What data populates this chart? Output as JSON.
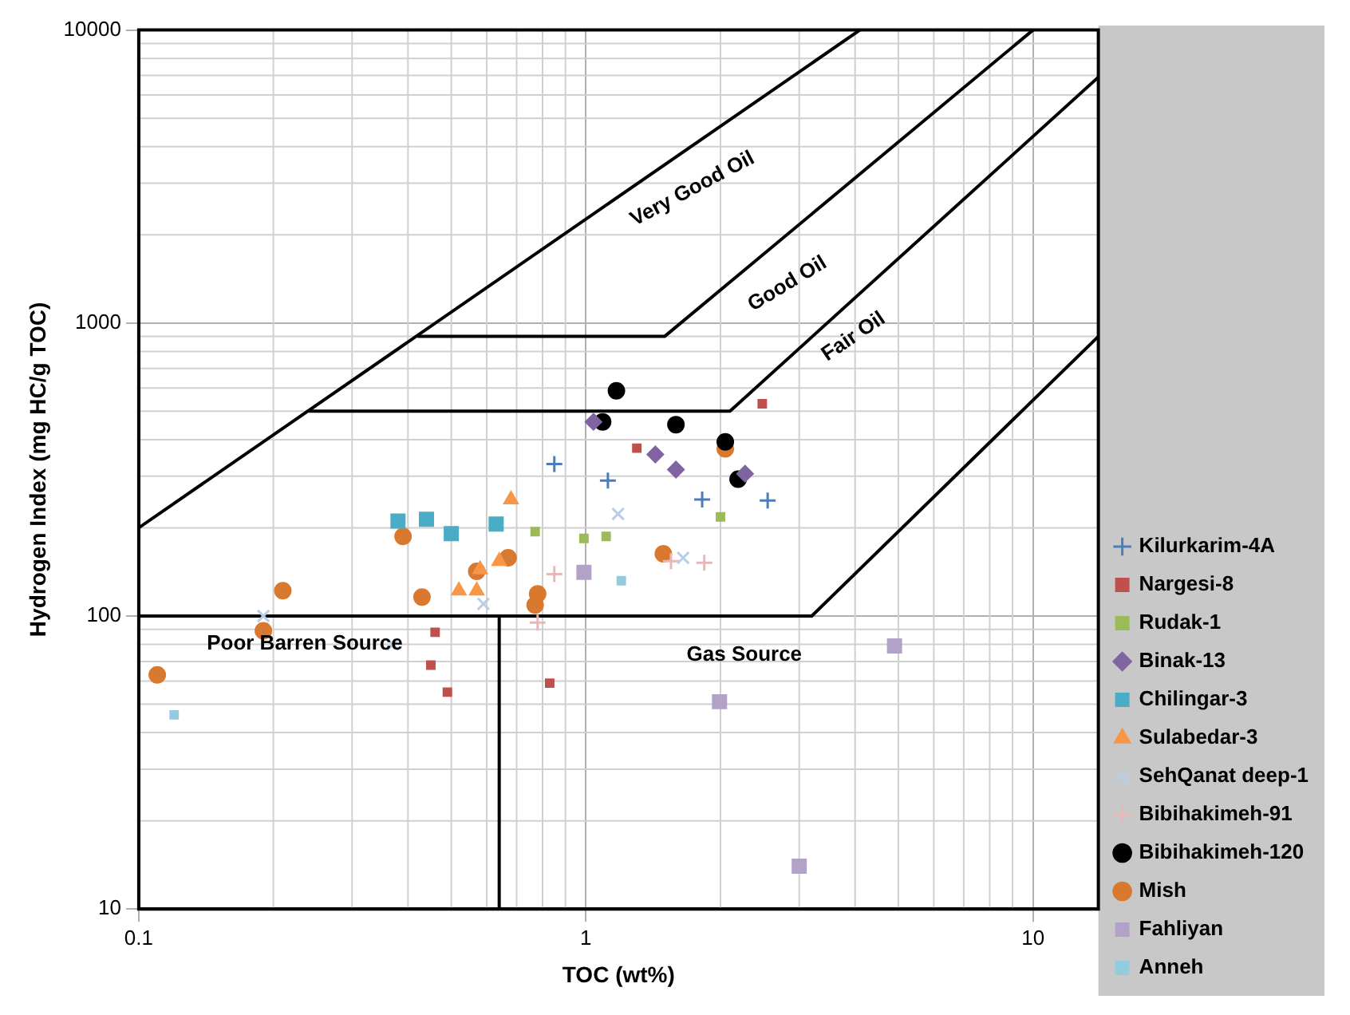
{
  "chart_data": {
    "type": "scatter",
    "xlabel": "TOC (wt%)",
    "ylabel": "Hydrogen Index (mg HC/g TOC)",
    "log": "xy",
    "grid": true,
    "legend": "right",
    "xlim": [
      0.1,
      14
    ],
    "xticks": [
      0.1,
      1,
      10
    ],
    "ylim": [
      10,
      10000
    ],
    "yticks": [
      10,
      100,
      1000,
      10000
    ],
    "annotations": [
      "Very Good Oil",
      "Good Oil",
      "Fair Oil",
      "Poor Barren Source",
      "Gas Source"
    ],
    "series": [
      {
        "type": "line",
        "color": "#000000",
        "marker": "none",
        "x": [
          0.1,
          4.1
        ],
        "values": [
          200,
          10000
        ]
      },
      {
        "type": "line",
        "color": "#000000",
        "marker": "none",
        "x": [
          0.42,
          1.5,
          10
        ],
        "values": [
          900,
          900,
          10000
        ]
      },
      {
        "type": "line",
        "color": "#000000",
        "marker": "none",
        "x": [
          0.24,
          2.1,
          14
        ],
        "values": [
          500,
          500,
          6900
        ]
      },
      {
        "type": "line",
        "color": "#000000",
        "marker": "none",
        "x": [
          0.1,
          3.2,
          14
        ],
        "values": [
          100,
          100,
          900
        ]
      },
      {
        "type": "line",
        "color": "#000000",
        "marker": "none",
        "x": [
          0.64,
          0.64
        ],
        "values": [
          100,
          10
        ]
      },
      {
        "name": "Kilurkarim-4A",
        "color": "#4a7ebb",
        "marker": "cross",
        "x": [
          0.85,
          1.12,
          1.82,
          2.55
        ],
        "values": [
          330,
          290,
          250,
          248
        ]
      },
      {
        "name": "Nargesi-8",
        "color": "#c0504d",
        "marker": "square",
        "x": [
          2.48,
          1.3,
          0.83,
          0.46,
          0.45,
          0.49
        ],
        "values": [
          530,
          374,
          59,
          88,
          68,
          55
        ]
      },
      {
        "name": "Rudak-1",
        "color": "#9bbb59",
        "marker": "square",
        "x": [
          0.77,
          0.99,
          1.11,
          2.0
        ],
        "values": [
          194,
          184,
          187,
          218
        ]
      },
      {
        "name": "Binak-13",
        "color": "#8064a2",
        "marker": "diamond",
        "x": [
          1.04,
          1.43,
          1.59,
          2.27
        ],
        "values": [
          460,
          356,
          316,
          306
        ]
      },
      {
        "name": "Chilingar-3",
        "color": "#4bacc6",
        "marker": "square",
        "x": [
          0.38,
          0.44,
          0.5,
          0.63
        ],
        "values": [
          211,
          214,
          191,
          206
        ]
      },
      {
        "name": "Sulabedar-3",
        "color": "#f79646",
        "marker": "triangle",
        "x": [
          0.68,
          0.52,
          0.57,
          0.58,
          0.64
        ],
        "values": [
          250,
          122,
          122,
          144,
          154
        ]
      },
      {
        "name": "SehQanat deep-1",
        "color": "#b9cde5",
        "marker": "x",
        "x": [
          0.19,
          0.37,
          0.59,
          1.18,
          1.65
        ],
        "values": [
          100,
          80,
          110,
          223,
          158
        ]
      },
      {
        "name": "Bibihakimeh-91",
        "color": "#e6b9b8",
        "marker": "cross",
        "x": [
          0.85,
          0.78,
          1.55,
          1.84
        ],
        "values": [
          139,
          95,
          154,
          152
        ]
      },
      {
        "name": "Bibihakimeh-120",
        "color": "#000000",
        "marker": "circle",
        "x": [
          1.17,
          1.09,
          1.59,
          2.05,
          2.19
        ],
        "values": [
          587,
          460,
          450,
          393,
          293
        ]
      },
      {
        "name": "Mish",
        "color": "#d9782f",
        "marker": "circle",
        "x": [
          0.11,
          0.19,
          0.21,
          0.39,
          0.43,
          0.57,
          0.67,
          1.49,
          2.05,
          0.78,
          0.77
        ],
        "values": [
          63,
          89,
          122,
          187,
          116,
          142,
          158,
          163,
          372,
          119,
          109
        ]
      },
      {
        "name": "Fahliyan",
        "color": "#b3a2c7",
        "marker": "square",
        "x": [
          0.99,
          1.99,
          3.0,
          4.9
        ],
        "values": [
          141,
          51,
          14,
          79
        ]
      },
      {
        "name": "Anneh",
        "color": "#93cddd",
        "marker": "square",
        "x": [
          0.12,
          1.2
        ],
        "values": [
          46,
          132
        ]
      }
    ]
  }
}
